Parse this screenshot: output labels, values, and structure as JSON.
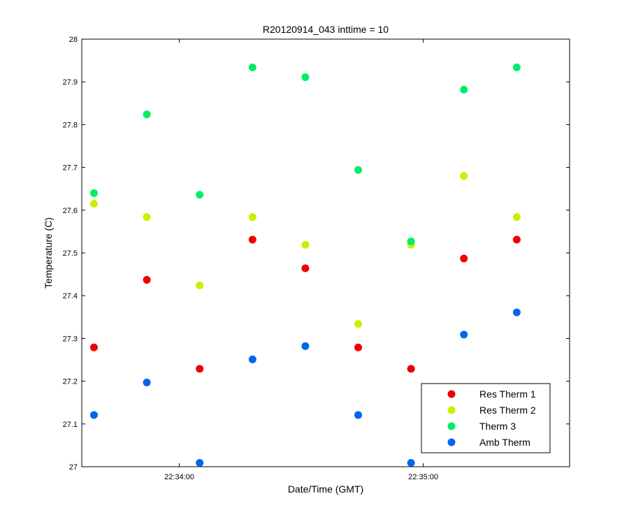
{
  "chart_data": {
    "type": "scatter",
    "title": "R20120914_043 inttime = 10",
    "xlabel": "Date/Time (GMT)",
    "ylabel": "Temperature (C)",
    "x_unit": "seconds after 22:34:00 GMT",
    "xlim": [
      -24,
      96
    ],
    "ylim": [
      27,
      28
    ],
    "x_ticks": [
      {
        "value": 0,
        "label": "22:34:00"
      },
      {
        "value": 60,
        "label": "22:35:00"
      }
    ],
    "y_ticks": [
      27,
      27.1,
      27.2,
      27.3,
      27.4,
      27.5,
      27.6,
      27.7,
      27.8,
      27.9,
      28
    ],
    "y_tick_labels": [
      "27",
      "27.1",
      "27.2",
      "27.3",
      "27.4",
      "27.5",
      "27.6",
      "27.7",
      "27.8",
      "27.9",
      "28"
    ],
    "grid": false,
    "legend_position": "bottom-right",
    "x": [
      -21,
      -8,
      5,
      18,
      31,
      44,
      57,
      70,
      83
    ],
    "series": [
      {
        "name": "Res Therm 1",
        "color": "#ee0000",
        "values": [
          27.279,
          27.437,
          27.229,
          27.531,
          27.464,
          27.279,
          27.229,
          27.487,
          27.531
        ]
      },
      {
        "name": "Res Therm 2",
        "color": "#ccee00",
        "values": [
          27.615,
          27.584,
          27.424,
          27.584,
          27.519,
          27.334,
          27.519,
          27.68,
          27.584
        ]
      },
      {
        "name": "Therm 3",
        "color": "#00ee66",
        "values": [
          27.64,
          27.824,
          27.636,
          27.934,
          27.911,
          27.694,
          27.527,
          27.882,
          27.934
        ]
      },
      {
        "name": "Amb Therm",
        "color": "#0066ee",
        "values": [
          27.121,
          27.197,
          27.009,
          27.251,
          27.282,
          27.121,
          27.009,
          27.309,
          27.361
        ]
      }
    ]
  }
}
